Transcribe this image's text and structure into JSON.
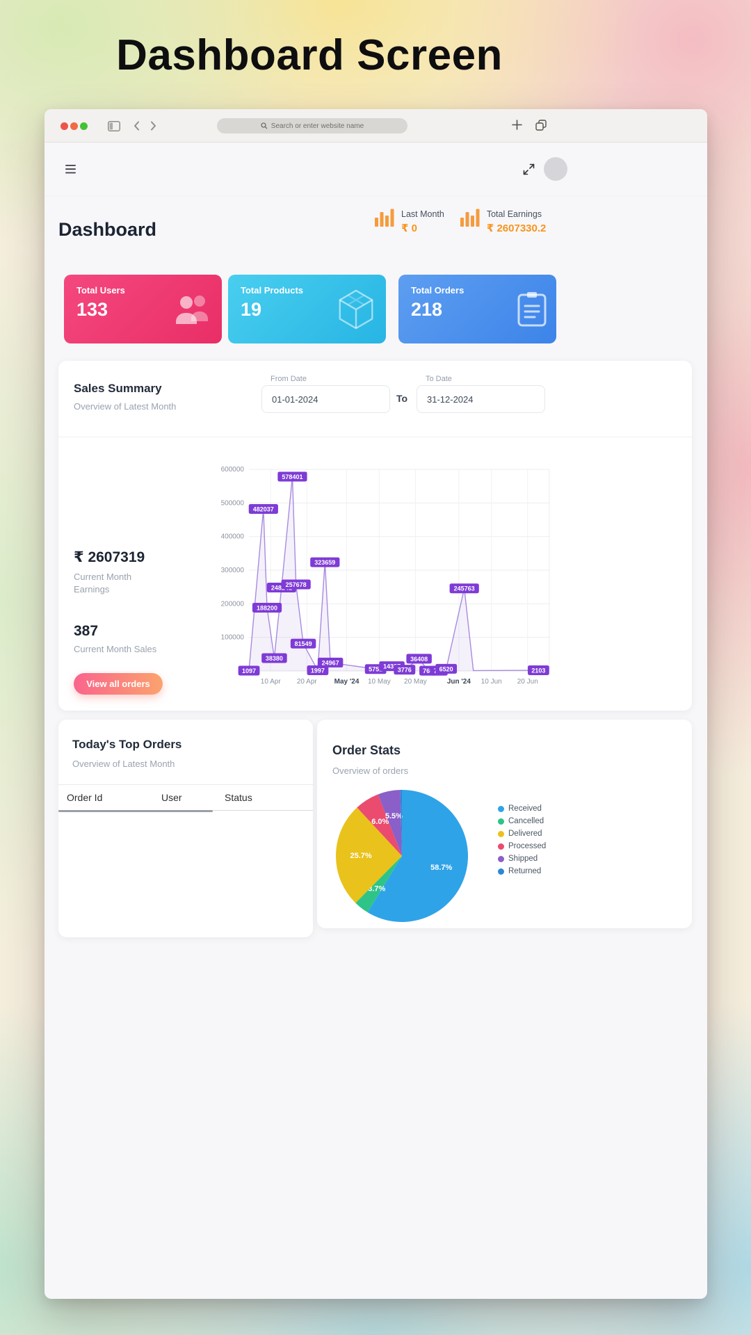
{
  "page": {
    "title": "Dashboard Screen"
  },
  "browser": {
    "search_placeholder": "Search or enter website name"
  },
  "header": {
    "title": "Dashboard",
    "last_month": {
      "label": "Last Month",
      "value": "₹ 0"
    },
    "total_earnings": {
      "label": "Total Earnings",
      "value": "₹ 2607330.2"
    }
  },
  "stat_cards": [
    {
      "label": "Total Users",
      "value": "133",
      "icon": "users-icon",
      "color": "#f4487f",
      "color2": "#e92e66"
    },
    {
      "label": "Total Products",
      "value": "19",
      "icon": "cube-icon",
      "color": "#49ceef",
      "color2": "#27b5e4"
    },
    {
      "label": "Total Orders",
      "value": "218",
      "icon": "clipboard-icon",
      "color": "#5d9ef1",
      "color2": "#3d84e9"
    }
  ],
  "sales_summary": {
    "title": "Sales Summary",
    "subtitle": "Overview of Latest Month",
    "from_date": {
      "label": "From Date",
      "value": "01-01-2024"
    },
    "to_separator": "To",
    "to_date": {
      "label": "To Date",
      "value": "31-12-2024"
    },
    "current_month_earnings": {
      "value": "₹ 2607319",
      "label": "Current Month Earnings"
    },
    "current_month_sales": {
      "value": "387",
      "label": "Current Month Sales"
    },
    "view_all_button": "View all orders"
  },
  "top_orders": {
    "title": "Today's Top Orders",
    "subtitle": "Overview of Latest Month",
    "columns": [
      "Order Id",
      "User",
      "Status"
    ],
    "rows": []
  },
  "order_stats": {
    "title": "Order Stats",
    "subtitle": "Overview of orders"
  },
  "chart_data": [
    {
      "type": "line",
      "title": "Sales Summary",
      "xlabel": "",
      "ylabel": "",
      "xlim": [
        0,
        83
      ],
      "ylim": [
        0,
        600000
      ],
      "grid": true,
      "line_color": "#a78bdf",
      "label_color": "#7e3bd6",
      "y_ticks": [
        100000,
        200000,
        300000,
        400000,
        500000,
        600000
      ],
      "x_ticks": [
        {
          "t": 6,
          "label": "10 Apr"
        },
        {
          "t": 16,
          "label": "20 Apr"
        },
        {
          "t": 27,
          "label": "May '24",
          "bold": true
        },
        {
          "t": 36,
          "label": "10 May"
        },
        {
          "t": 46,
          "label": "20 May"
        },
        {
          "t": 58,
          "label": "Jun '24",
          "bold": true
        },
        {
          "t": 67,
          "label": "10 Jun"
        },
        {
          "t": 77,
          "label": "20 Jun"
        }
      ],
      "series": [
        {
          "name": "Sales",
          "points": [
            {
              "t": 0,
              "value": 1097,
              "label": "1097"
            },
            {
              "t": 4,
              "value": 482037,
              "label": "482037"
            },
            {
              "t": 5,
              "value": 188200,
              "label": "188200"
            },
            {
              "t": 7,
              "value": 38380,
              "label": "38380"
            },
            {
              "t": 9,
              "value": 248241,
              "label": "248241"
            },
            {
              "t": 12,
              "value": 578401,
              "label": "578401"
            },
            {
              "t": 13,
              "value": 257678,
              "label": "257678"
            },
            {
              "t": 15,
              "value": 81549,
              "label": "81549"
            },
            {
              "t": 19,
              "value": 1997,
              "label": "1997"
            },
            {
              "t": 21,
              "value": 323659,
              "label": "323659"
            },
            {
              "t": 22.5,
              "value": 24967,
              "label": "24967"
            },
            {
              "t": 35,
              "value": 5751,
              "label": "5751"
            },
            {
              "t": 39.5,
              "value": 14327,
              "label": "14327"
            },
            {
              "t": 43,
              "value": 3776,
              "label": "3776"
            },
            {
              "t": 47,
              "value": 36408,
              "label": "36408"
            },
            {
              "t": 49.5,
              "value": 760,
              "label": "760"
            },
            {
              "t": 52.5,
              "value": 766,
              "label": "766"
            },
            {
              "t": 54.5,
              "value": 6520,
              "label": "6520"
            },
            {
              "t": 59.5,
              "value": 245763,
              "label": "245763"
            },
            {
              "t": 62,
              "value": 1200,
              "label": ""
            },
            {
              "t": 80,
              "value": 2103,
              "label": "2103"
            }
          ]
        }
      ]
    },
    {
      "type": "pie",
      "title": "Order Stats",
      "legend_position": "right",
      "slices": [
        {
          "label": "Received",
          "value": 58.7,
          "color": "#2fa3e8"
        },
        {
          "label": "Cancelled",
          "value": 3.7,
          "color": "#2ec487"
        },
        {
          "label": "Delivered",
          "value": 25.7,
          "color": "#e9c21b"
        },
        {
          "label": "Processed",
          "value": 6.0,
          "color": "#ea4b6e"
        },
        {
          "label": "Shipped",
          "value": 5.5,
          "color": "#8a5fc7"
        },
        {
          "label": "Returned",
          "value": 0.4,
          "color": "#2d86d8"
        }
      ]
    }
  ]
}
